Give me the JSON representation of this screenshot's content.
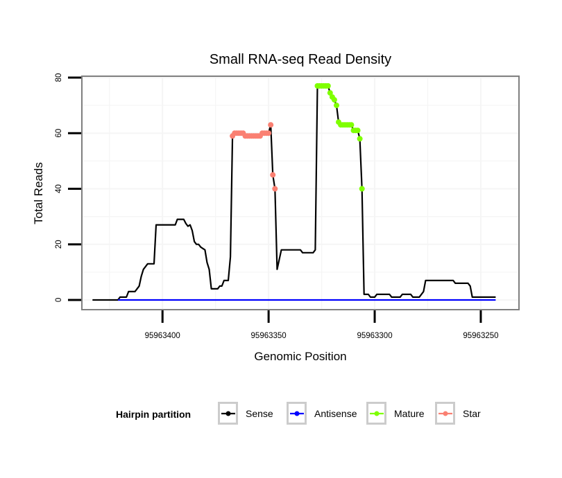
{
  "chart_data": {
    "type": "line",
    "title": "Small RNA-seq Read Density",
    "xlabel": "Genomic Position",
    "ylabel": "Total Reads",
    "x_reversed": true,
    "xlim": [
      95963438,
      95963232
    ],
    "ylim": [
      -3.5,
      80.5
    ],
    "xticks": [
      95963400,
      95963350,
      95963300,
      95963250
    ],
    "xtick_labels": [
      "95963400",
      "95963350",
      "95963300",
      "95963250"
    ],
    "yticks": [
      0,
      20,
      40,
      60,
      80
    ],
    "ytick_labels": [
      "0",
      "20",
      "40",
      "60",
      "80"
    ],
    "grid": true,
    "legend": {
      "title": "Hairpin partition",
      "placement": "bottom",
      "entries": [
        {
          "label": "Sense",
          "color": "#000000"
        },
        {
          "label": "Antisense",
          "color": "#0000ff"
        },
        {
          "label": "Mature",
          "color": "#7fff00"
        },
        {
          "label": "Star",
          "color": "#fa8072"
        }
      ]
    },
    "series": [
      {
        "name": "Sense",
        "color": "#000000",
        "style": "line",
        "points": [
          [
            95963433,
            0
          ],
          [
            95963421,
            0
          ],
          [
            95963420,
            1
          ],
          [
            95963417,
            1
          ],
          [
            95963416,
            3
          ],
          [
            95963413,
            3
          ],
          [
            95963411,
            5
          ],
          [
            95963410,
            8.5
          ],
          [
            95963409,
            11
          ],
          [
            95963407,
            13
          ],
          [
            95963404,
            13
          ],
          [
            95963403,
            27
          ],
          [
            95963394,
            27
          ],
          [
            95963393,
            29
          ],
          [
            95963390,
            29
          ],
          [
            95963389,
            27.5
          ],
          [
            95963388,
            26.5
          ],
          [
            95963387,
            27
          ],
          [
            95963386,
            25
          ],
          [
            95963385,
            21
          ],
          [
            95963384,
            20
          ],
          [
            95963383,
            20
          ],
          [
            95963382,
            19
          ],
          [
            95963381,
            18.5
          ],
          [
            95963380,
            18
          ],
          [
            95963379,
            13.5
          ],
          [
            95963378,
            11
          ],
          [
            95963377,
            4
          ],
          [
            95963374,
            4
          ],
          [
            95963373,
            5
          ],
          [
            95963372,
            5
          ],
          [
            95963371,
            7
          ],
          [
            95963369,
            7
          ],
          [
            95963368,
            15.5
          ],
          [
            95963367,
            59
          ],
          [
            95963366,
            60
          ],
          [
            95963362,
            60
          ],
          [
            95963361,
            59
          ],
          [
            95963354,
            59
          ],
          [
            95963353,
            60
          ],
          [
            95963350,
            60
          ],
          [
            95963349,
            63
          ],
          [
            95963348,
            45
          ],
          [
            95963347,
            40
          ],
          [
            95963346,
            11
          ],
          [
            95963344,
            18
          ],
          [
            95963335,
            18
          ],
          [
            95963334,
            17
          ],
          [
            95963329,
            17
          ],
          [
            95963328,
            18
          ],
          [
            95963327,
            77
          ],
          [
            95963322,
            77
          ],
          [
            95963321,
            74.5
          ],
          [
            95963320,
            73
          ],
          [
            95963319,
            72
          ],
          [
            95963318,
            70
          ],
          [
            95963317,
            64
          ],
          [
            95963316,
            63
          ],
          [
            95963311,
            63
          ],
          [
            95963310,
            61
          ],
          [
            95963308,
            61
          ],
          [
            95963307,
            58
          ],
          [
            95963306,
            40
          ],
          [
            95963305,
            2
          ],
          [
            95963303,
            2
          ],
          [
            95963302,
            1
          ],
          [
            95963300,
            1
          ],
          [
            95963299,
            2
          ],
          [
            95963293,
            2
          ],
          [
            95963292,
            1
          ],
          [
            95963288,
            1
          ],
          [
            95963287,
            2
          ],
          [
            95963283,
            2
          ],
          [
            95963282,
            1
          ],
          [
            95963279,
            1
          ],
          [
            95963277,
            3
          ],
          [
            95963276,
            7
          ],
          [
            95963263,
            7
          ],
          [
            95963262,
            6
          ],
          [
            95963256,
            6
          ],
          [
            95963255,
            5
          ],
          [
            95963254,
            1
          ],
          [
            95963243,
            1
          ]
        ]
      },
      {
        "name": "Antisense",
        "color": "#0000ff",
        "style": "line",
        "points": [
          [
            95963421,
            0
          ],
          [
            95963243,
            0
          ]
        ]
      },
      {
        "name": "Star",
        "color": "#fa8072",
        "style": "points",
        "points": [
          [
            95963367,
            59
          ],
          [
            95963366,
            60
          ],
          [
            95963365,
            60
          ],
          [
            95963364,
            60
          ],
          [
            95963363,
            60
          ],
          [
            95963362,
            60
          ],
          [
            95963361,
            59
          ],
          [
            95963360,
            59
          ],
          [
            95963359,
            59
          ],
          [
            95963358,
            59
          ],
          [
            95963357,
            59
          ],
          [
            95963356,
            59
          ],
          [
            95963355,
            59
          ],
          [
            95963354,
            59
          ],
          [
            95963353,
            60
          ],
          [
            95963352,
            60
          ],
          [
            95963351,
            60
          ],
          [
            95963350,
            60
          ],
          [
            95963349,
            63
          ],
          [
            95963348,
            45
          ],
          [
            95963347,
            40
          ]
        ]
      },
      {
        "name": "Mature",
        "color": "#7fff00",
        "style": "points",
        "points": [
          [
            95963327,
            77
          ],
          [
            95963326,
            77
          ],
          [
            95963325,
            77
          ],
          [
            95963324,
            77
          ],
          [
            95963323,
            77
          ],
          [
            95963322,
            77
          ],
          [
            95963321,
            74.5
          ],
          [
            95963320,
            73
          ],
          [
            95963319,
            72
          ],
          [
            95963318,
            70
          ],
          [
            95963317,
            64
          ],
          [
            95963316,
            63
          ],
          [
            95963315,
            63
          ],
          [
            95963314,
            63
          ],
          [
            95963313,
            63
          ],
          [
            95963312,
            63
          ],
          [
            95963311,
            63
          ],
          [
            95963310,
            61
          ],
          [
            95963309,
            61
          ],
          [
            95963308,
            61
          ],
          [
            95963307,
            58
          ],
          [
            95963306,
            40
          ]
        ]
      }
    ]
  }
}
